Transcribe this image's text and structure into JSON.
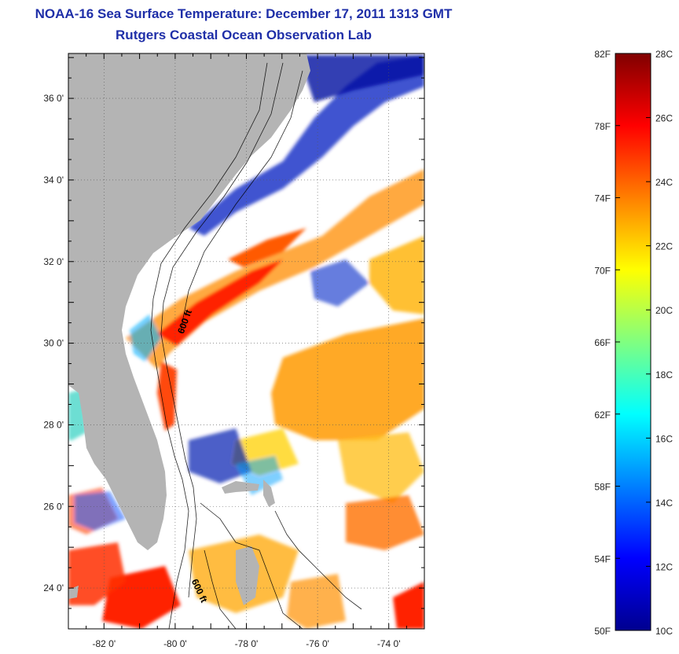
{
  "title": {
    "line1": "NOAA-16 Sea Surface Temperature:  December 17, 2011 1313 GMT",
    "line2": "Rutgers Coastal Ocean Observation Lab"
  },
  "map": {
    "lat_ticks": [
      {
        "value": 36,
        "label": "36 0'"
      },
      {
        "value": 34,
        "label": "34 0'"
      },
      {
        "value": 32,
        "label": "32 0'"
      },
      {
        "value": 30,
        "label": "30 0'"
      },
      {
        "value": 28,
        "label": "28 0'"
      },
      {
        "value": 26,
        "label": "26 0'"
      },
      {
        "value": 24,
        "label": "24 0'"
      }
    ],
    "lon_ticks": [
      {
        "value": -82,
        "label": "-82 0'"
      },
      {
        "value": -80,
        "label": "-80 0'"
      },
      {
        "value": -78,
        "label": "-78 0'"
      },
      {
        "value": -76,
        "label": "-76 0'"
      },
      {
        "value": -74,
        "label": "-74 0'"
      }
    ],
    "lat_range": [
      23,
      37.1
    ],
    "lon_range": [
      -83,
      -73
    ],
    "contour_labels": [
      {
        "text": "600 ft",
        "lon": -79.65,
        "lat": 30.5,
        "angle": -70
      },
      {
        "text": "600 ft",
        "lon": -79.4,
        "lat": 23.9,
        "angle": 65
      }
    ],
    "land_color": "#b4b4b4",
    "cloud_color": "#ffffff"
  },
  "colorbar": {
    "fahrenheit": [
      "82F",
      "78F",
      "74F",
      "70F",
      "66F",
      "62F",
      "58F",
      "54F",
      "50F"
    ],
    "celsius": [
      "28C",
      "26C",
      "24C",
      "22C",
      "20C",
      "18C",
      "16C",
      "14C",
      "12C",
      "10C"
    ],
    "range_c": [
      10,
      28
    ]
  }
}
